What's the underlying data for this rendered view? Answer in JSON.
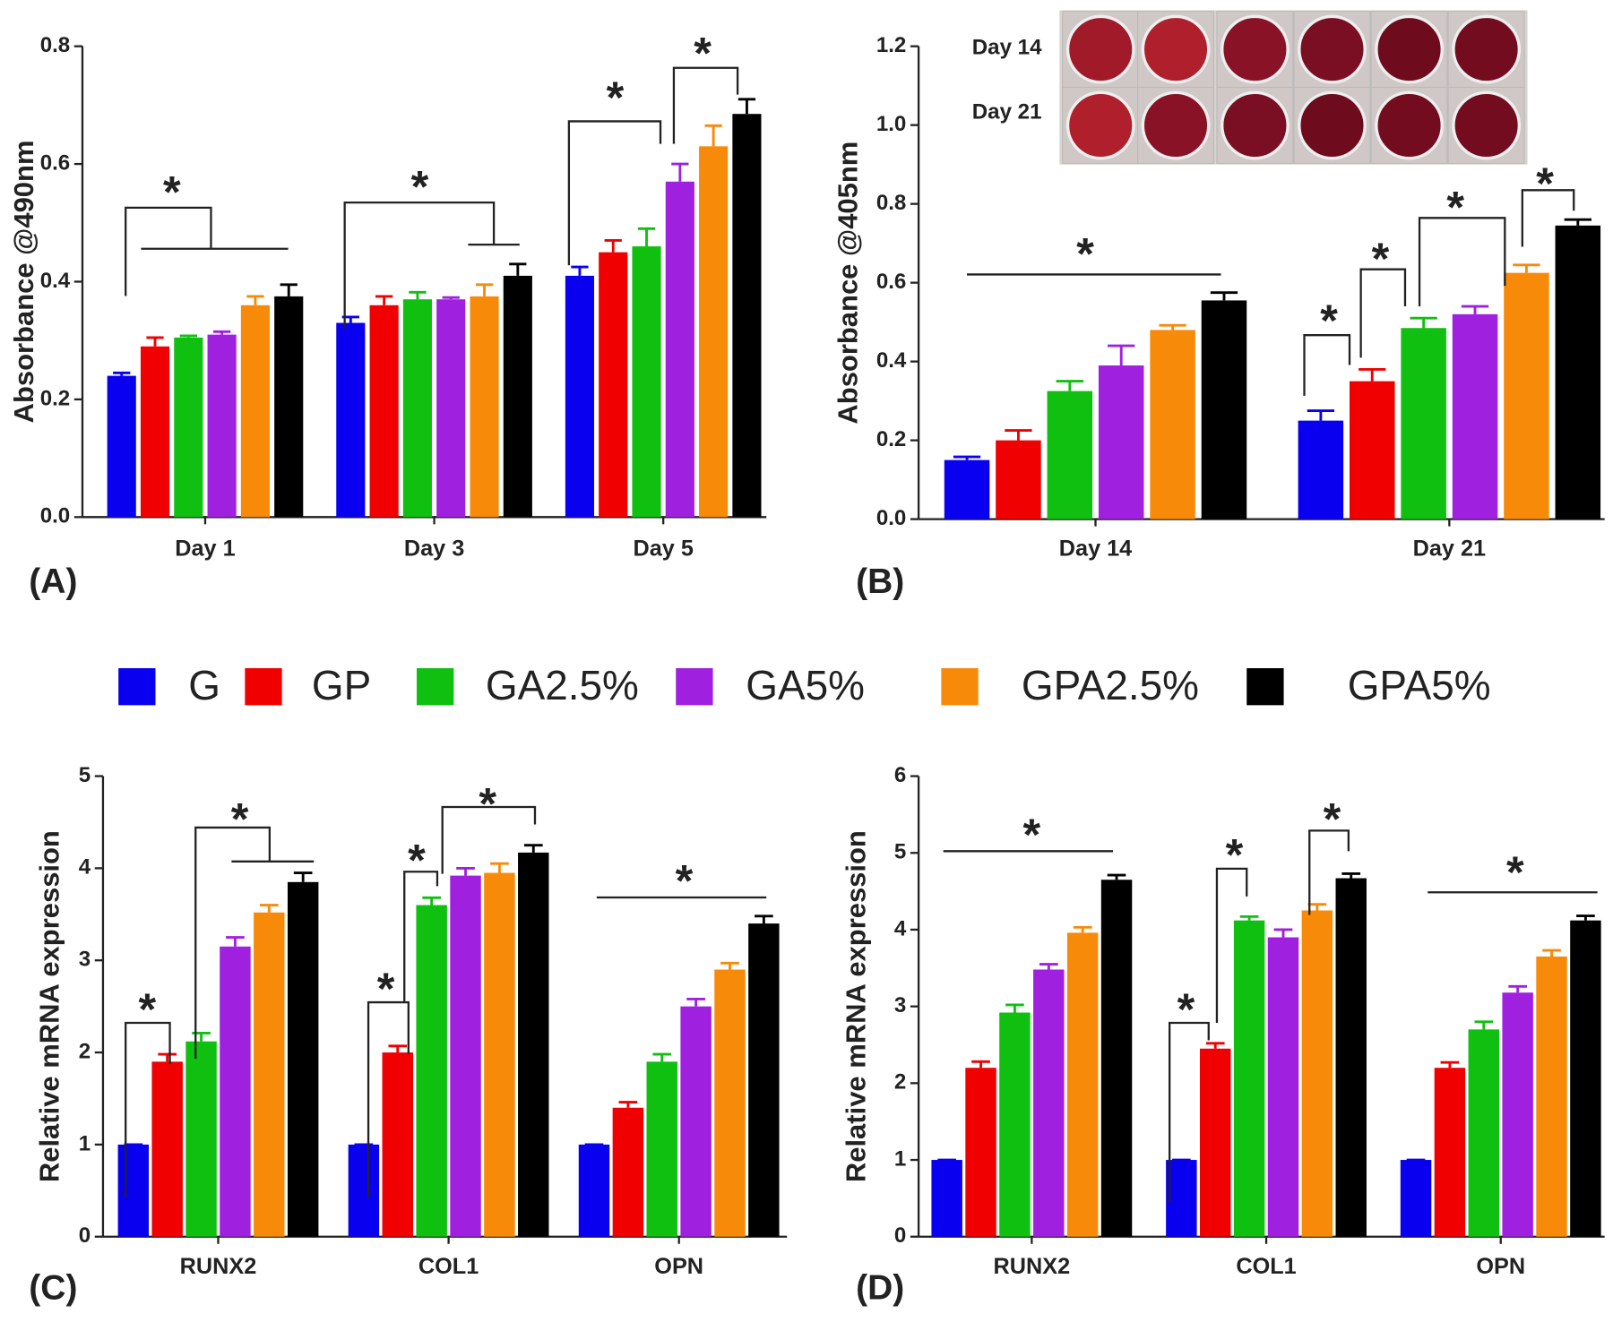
{
  "legend": [
    {
      "name": "G",
      "color": "#0a00f0"
    },
    {
      "name": "GP",
      "color": "#f00000"
    },
    {
      "name": "GA2.5%",
      "color": "#10c010"
    },
    {
      "name": "GA5%",
      "color": "#a020e0"
    },
    {
      "name": "GPA2.5%",
      "color": "#f88a0a"
    },
    {
      "name": "GPA5%",
      "color": "#000000"
    }
  ],
  "chart_data": [
    {
      "type": "bar",
      "panel": "(A)",
      "ylabel": "Absorbance @490nm",
      "categories": [
        "Day 1",
        "Day 3",
        "Day 5"
      ],
      "ylim": [
        0,
        0.8
      ],
      "yticks": [
        {
          "value": 0,
          "label": "0.0"
        },
        0.2,
        0.4,
        0.6,
        0.8
      ],
      "series": [
        {
          "values": [
            0.24,
            0.33,
            0.41
          ],
          "errors": [
            0.005,
            0.01,
            0.015
          ]
        },
        {
          "values": [
            0.29,
            0.36,
            0.45
          ],
          "errors": [
            0.015,
            0.015,
            0.02
          ]
        },
        {
          "values": [
            0.305,
            0.37,
            0.46
          ],
          "errors": [
            0.003,
            0.012,
            0.03
          ]
        },
        {
          "values": [
            0.31,
            0.37,
            0.57
          ],
          "errors": [
            0.005,
            0.003,
            0.03
          ]
        },
        {
          "values": [
            0.36,
            0.375,
            0.63
          ],
          "errors": [
            0.015,
            0.02,
            0.035
          ]
        },
        {
          "values": [
            0.375,
            0.41,
            0.685
          ],
          "errors": [
            0.02,
            0.02,
            0.025
          ]
        }
      ],
      "significance": [
        "*",
        "*",
        "*",
        "*"
      ]
    },
    {
      "type": "bar",
      "panel": "(B)",
      "ylabel": "Absorbance @405nm",
      "categories": [
        "Day 14",
        "Day 21"
      ],
      "ylim": [
        0,
        1.2
      ],
      "yticks": [
        {
          "value": 0,
          "label": "0.0"
        },
        0.2,
        0.4,
        0.6,
        0.8,
        {
          "value": 1,
          "label": "1.0"
        },
        1.2
      ],
      "series": [
        {
          "values": [
            0.15,
            0.25
          ],
          "errors": [
            0.008,
            0.025
          ]
        },
        {
          "values": [
            0.2,
            0.35
          ],
          "errors": [
            0.025,
            0.03
          ]
        },
        {
          "values": [
            0.325,
            0.485
          ],
          "errors": [
            0.025,
            0.025
          ]
        },
        {
          "values": [
            0.39,
            0.52
          ],
          "errors": [
            0.05,
            0.02
          ]
        },
        {
          "values": [
            0.48,
            0.625
          ],
          "errors": [
            0.012,
            0.02
          ]
        },
        {
          "values": [
            0.555,
            0.745
          ],
          "errors": [
            0.02,
            0.015
          ]
        }
      ],
      "significance": [
        "*",
        "*",
        "*",
        "*",
        "*"
      ],
      "inset_labels": [
        "Day 14",
        "Day 21"
      ]
    },
    {
      "type": "bar",
      "panel": "(C)",
      "ylabel": "Relative mRNA expression",
      "categories": [
        "RUNX2",
        "COL1",
        "OPN"
      ],
      "ylim": [
        0,
        5
      ],
      "yticks": [
        0,
        1,
        2,
        3,
        4,
        5
      ],
      "series": [
        {
          "values": [
            1,
            1,
            1
          ],
          "errors": [
            0,
            0,
            0
          ]
        },
        {
          "values": [
            1.9,
            2.0,
            1.4
          ],
          "errors": [
            0.08,
            0.07,
            0.06
          ]
        },
        {
          "values": [
            2.12,
            3.6,
            1.9
          ],
          "errors": [
            0.09,
            0.08,
            0.08
          ]
        },
        {
          "values": [
            3.15,
            3.92,
            2.5
          ],
          "errors": [
            0.1,
            0.08,
            0.08
          ]
        },
        {
          "values": [
            3.52,
            3.95,
            2.9
          ],
          "errors": [
            0.08,
            0.1,
            0.07
          ]
        },
        {
          "values": [
            3.85,
            4.17,
            3.4
          ],
          "errors": [
            0.1,
            0.08,
            0.08
          ]
        }
      ],
      "significance": [
        "*",
        "*",
        "*",
        "*",
        "*",
        "*"
      ]
    },
    {
      "type": "bar",
      "panel": "(D)",
      "ylabel": "Relative mRNA expression",
      "categories": [
        "RUNX2",
        "COL1",
        "OPN"
      ],
      "ylim": [
        0,
        6
      ],
      "yticks": [
        0,
        1,
        2,
        3,
        4,
        5,
        6
      ],
      "series": [
        {
          "values": [
            1,
            1,
            1
          ],
          "errors": [
            0,
            0,
            0
          ]
        },
        {
          "values": [
            2.2,
            2.45,
            2.2
          ],
          "errors": [
            0.08,
            0.07,
            0.07
          ]
        },
        {
          "values": [
            2.92,
            4.12,
            2.7
          ],
          "errors": [
            0.1,
            0.05,
            0.1
          ]
        },
        {
          "values": [
            3.48,
            3.9,
            3.18
          ],
          "errors": [
            0.07,
            0.1,
            0.08
          ]
        },
        {
          "values": [
            3.96,
            4.25,
            3.65
          ],
          "errors": [
            0.07,
            0.08,
            0.08
          ]
        },
        {
          "values": [
            4.65,
            4.67,
            4.12
          ],
          "errors": [
            0.06,
            0.06,
            0.06
          ]
        }
      ],
      "significance": [
        "*",
        "*",
        "*",
        "*",
        "*"
      ]
    }
  ]
}
